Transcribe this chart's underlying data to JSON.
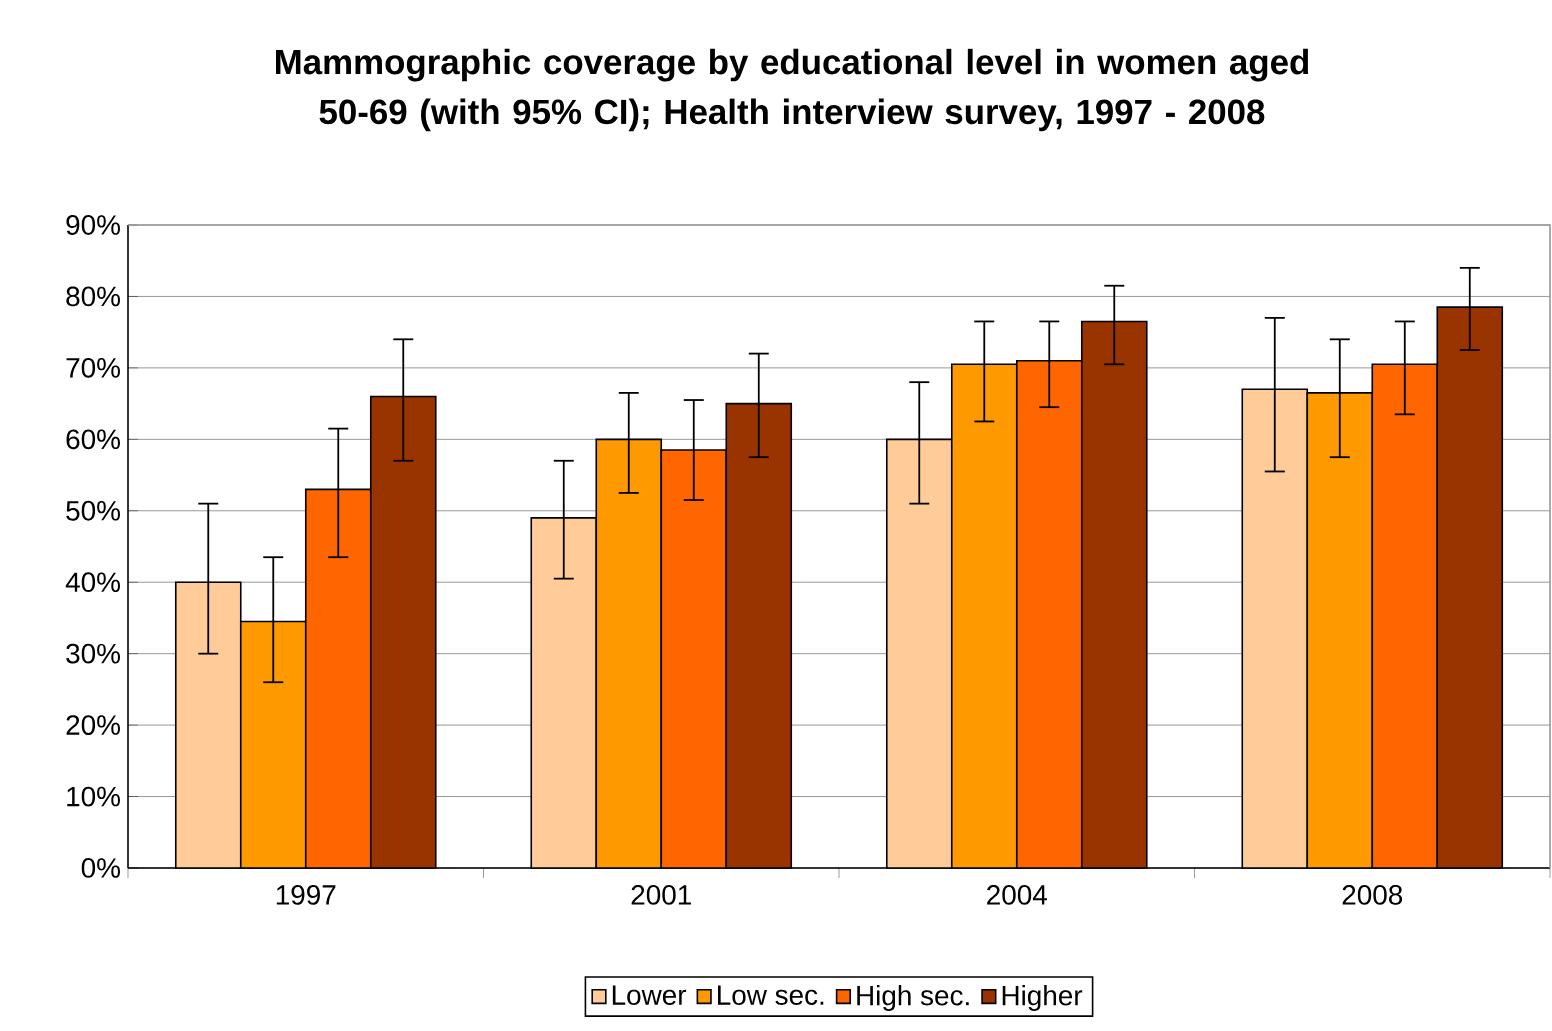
{
  "chart_data": {
    "type": "bar",
    "title": "Mammographic coverage by educational level  in women aged 50-69 (with 95% CI); Health interview survey, 1997 - 2008",
    "categories": [
      "1997",
      "2001",
      "2004",
      "2008"
    ],
    "series": [
      {
        "name": "Lower",
        "color": "#ffcc99",
        "values": [
          40,
          49,
          60,
          67
        ],
        "errors": [
          [
            30,
            51
          ],
          [
            40.5,
            57
          ],
          [
            51,
            68
          ],
          [
            55.5,
            77
          ]
        ]
      },
      {
        "name": "Low sec.",
        "color": "#ff9900",
        "values": [
          34.5,
          60,
          70.5,
          66.5
        ],
        "errors": [
          [
            26,
            43.5
          ],
          [
            52.5,
            66.5
          ],
          [
            62.5,
            76.5
          ],
          [
            57.5,
            74
          ]
        ]
      },
      {
        "name": "High sec.",
        "color": "#ff6600",
        "values": [
          53,
          58.5,
          71,
          70.5
        ],
        "errors": [
          [
            43.5,
            61.5
          ],
          [
            51.5,
            65.5
          ],
          [
            64.5,
            76.5
          ],
          [
            63.5,
            76.5
          ]
        ]
      },
      {
        "name": "Higher",
        "color": "#993300",
        "values": [
          66,
          65,
          76.5,
          78.5
        ],
        "errors": [
          [
            57,
            74
          ],
          [
            57.5,
            72
          ],
          [
            70.5,
            81.5
          ],
          [
            72.5,
            84
          ]
        ]
      }
    ],
    "ylim": [
      0,
      90
    ],
    "yticks": [
      {
        "value": 0,
        "label": "0%"
      },
      {
        "value": 10,
        "label": "10%"
      },
      {
        "value": 20,
        "label": "20%"
      },
      {
        "value": 30,
        "label": "30%"
      },
      {
        "value": 40,
        "label": "40%"
      },
      {
        "value": 50,
        "label": "50%"
      },
      {
        "value": 60,
        "label": "60%"
      },
      {
        "value": 70,
        "label": "70%"
      },
      {
        "value": 80,
        "label": "80%"
      },
      {
        "value": 90,
        "label": "90%"
      }
    ],
    "grid": "y",
    "legend": "bottom"
  }
}
